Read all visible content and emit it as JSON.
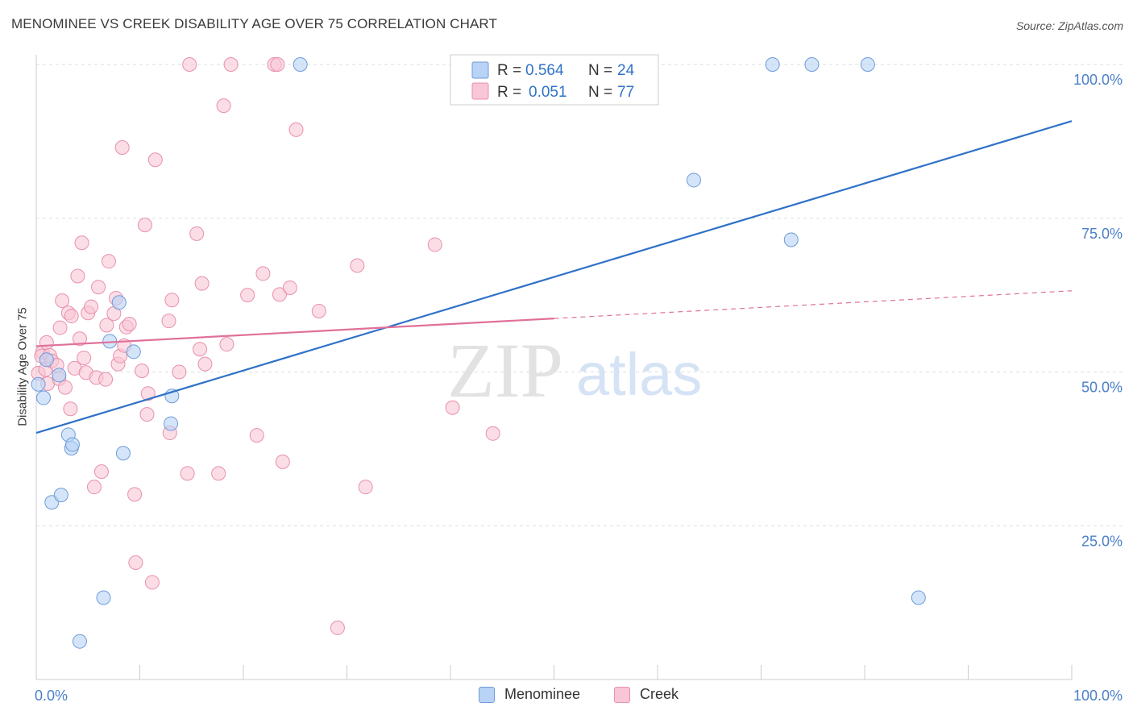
{
  "header": {
    "title": "MENOMINEE VS CREEK DISABILITY AGE OVER 75 CORRELATION CHART",
    "source": "Source: ZipAtlas.com"
  },
  "watermark": {
    "zip": "ZIP",
    "atlas": "atlas"
  },
  "colors": {
    "menominee_fill": "#b8d3f5",
    "menominee_stroke": "#6f9bd8",
    "menominee_line": "#2f72c8",
    "creek_fill": "#f8c6d6",
    "creek_stroke": "#e890ad",
    "creek_line": "#e0709a",
    "tick_label": "#4a7fc8",
    "grid": "#dddddd"
  },
  "legend_top": {
    "rows": [
      {
        "r_label": "R = ",
        "r_value": "0.564",
        "n_label": "N = ",
        "n_value": "24"
      },
      {
        "r_label": "R = ",
        "r_value": "0.051",
        "n_label": "N = ",
        "n_value": "77"
      }
    ]
  },
  "legend_bottom": {
    "items": [
      "Menominee",
      "Creek"
    ]
  },
  "chart_data": {
    "type": "scatter",
    "title": "MENOMINEE VS CREEK DISABILITY AGE OVER 75 CORRELATION CHART",
    "xlabel": "",
    "ylabel": "Disability Age Over 75",
    "xlim": [
      0,
      100
    ],
    "ylim": [
      0,
      105
    ],
    "x_ticks": [
      "0.0%",
      "100.0%"
    ],
    "y_ticks": [
      {
        "value": 25,
        "label": "25.0%"
      },
      {
        "value": 50,
        "label": "50.0%"
      },
      {
        "value": 75,
        "label": "75.0%"
      },
      {
        "value": 100,
        "label": "100.0%"
      }
    ],
    "grid": "horizontal dashed",
    "legend": "top-center",
    "series": [
      {
        "name": "Menominee",
        "r": 0.564,
        "n": 24,
        "trend": {
          "x": [
            0,
            100
          ],
          "y": [
            40.1,
            90.8
          ],
          "dashed_from": null
        },
        "points": [
          [
            0.2,
            48.0
          ],
          [
            0.7,
            45.8
          ],
          [
            1.0,
            52.0
          ],
          [
            2.2,
            49.5
          ],
          [
            1.5,
            28.8
          ],
          [
            2.4,
            30.0
          ],
          [
            3.1,
            39.8
          ],
          [
            3.4,
            37.6
          ],
          [
            3.5,
            38.2
          ],
          [
            4.2,
            6.2
          ],
          [
            6.5,
            13.3
          ],
          [
            7.1,
            55.0
          ],
          [
            8.0,
            61.3
          ],
          [
            8.4,
            36.8
          ],
          [
            9.4,
            53.3
          ],
          [
            13.0,
            41.6
          ],
          [
            13.1,
            46.1
          ],
          [
            25.5,
            100.0
          ],
          [
            63.5,
            81.2
          ],
          [
            71.1,
            100.0
          ],
          [
            72.9,
            71.5
          ],
          [
            74.9,
            100.0
          ],
          [
            80.3,
            100.0
          ],
          [
            85.2,
            13.3
          ]
        ]
      },
      {
        "name": "Creek",
        "r": 0.051,
        "n": 77,
        "trend": {
          "x": [
            0,
            100
          ],
          "y": [
            54.2,
            63.2
          ],
          "dashed_from": 50
        },
        "points": [
          [
            0.2,
            49.8
          ],
          [
            0.6,
            53.2
          ],
          [
            0.5,
            52.6
          ],
          [
            0.9,
            50.4
          ],
          [
            1.0,
            54.8
          ],
          [
            1.1,
            48.1
          ],
          [
            1.3,
            52.7
          ],
          [
            1.5,
            51.8
          ],
          [
            2.0,
            51.1
          ],
          [
            2.2,
            48.9
          ],
          [
            2.3,
            57.2
          ],
          [
            2.5,
            61.6
          ],
          [
            2.8,
            47.5
          ],
          [
            3.1,
            59.6
          ],
          [
            3.3,
            44.0
          ],
          [
            3.4,
            59.1
          ],
          [
            3.7,
            50.6
          ],
          [
            4.0,
            65.6
          ],
          [
            4.2,
            55.4
          ],
          [
            4.4,
            71.0
          ],
          [
            4.6,
            52.3
          ],
          [
            4.8,
            49.9
          ],
          [
            5.0,
            59.6
          ],
          [
            5.3,
            60.6
          ],
          [
            5.6,
            31.3
          ],
          [
            5.8,
            49.1
          ],
          [
            6.0,
            63.8
          ],
          [
            6.3,
            33.8
          ],
          [
            6.7,
            48.8
          ],
          [
            6.8,
            57.6
          ],
          [
            7.0,
            68.0
          ],
          [
            7.5,
            59.5
          ],
          [
            7.7,
            62.0
          ],
          [
            7.9,
            51.3
          ],
          [
            8.1,
            52.6
          ],
          [
            8.3,
            86.5
          ],
          [
            8.5,
            54.3
          ],
          [
            8.7,
            57.3
          ],
          [
            9.0,
            57.8
          ],
          [
            9.5,
            30.1
          ],
          [
            9.6,
            19.0
          ],
          [
            10.2,
            50.2
          ],
          [
            10.5,
            73.9
          ],
          [
            10.7,
            43.1
          ],
          [
            10.8,
            46.5
          ],
          [
            11.2,
            15.8
          ],
          [
            11.5,
            84.5
          ],
          [
            12.8,
            58.3
          ],
          [
            12.9,
            40.1
          ],
          [
            13.1,
            61.7
          ],
          [
            13.8,
            50.0
          ],
          [
            14.6,
            33.5
          ],
          [
            15.5,
            72.5
          ],
          [
            15.8,
            53.7
          ],
          [
            16.0,
            64.4
          ],
          [
            16.3,
            51.3
          ],
          [
            17.6,
            33.5
          ],
          [
            18.1,
            93.3
          ],
          [
            18.4,
            54.5
          ],
          [
            20.4,
            62.5
          ],
          [
            21.3,
            39.7
          ],
          [
            21.9,
            66.0
          ],
          [
            23.0,
            100.0
          ],
          [
            23.5,
            62.6
          ],
          [
            23.8,
            35.4
          ],
          [
            24.5,
            63.7
          ],
          [
            25.1,
            89.4
          ],
          [
            18.8,
            100.0
          ],
          [
            14.8,
            100.0
          ],
          [
            27.3,
            59.9
          ],
          [
            29.1,
            8.4
          ],
          [
            31.0,
            67.3
          ],
          [
            31.8,
            31.3
          ],
          [
            38.5,
            70.7
          ],
          [
            40.2,
            44.2
          ],
          [
            44.1,
            40.0
          ],
          [
            23.3,
            100.0
          ]
        ]
      }
    ]
  }
}
